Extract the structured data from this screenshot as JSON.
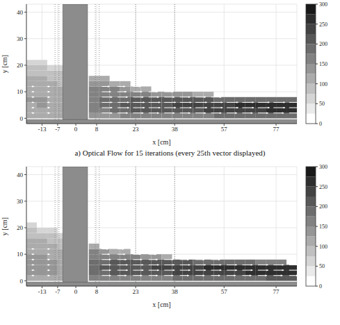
{
  "chart_data": [
    {
      "type": "heatmap",
      "title": "a) Optical Flow for 15 iterations (every 25th vector displayed)",
      "x_label": "x [cm]",
      "y_label": "y [cm]",
      "xlim": [
        -19,
        85
      ],
      "ylim": [
        -2,
        43
      ],
      "xticks": [
        -13,
        -7,
        0,
        8,
        23,
        38,
        57,
        77
      ],
      "yticks": [
        0,
        10,
        20,
        30,
        40
      ],
      "grid": true,
      "x_bins": [
        -19,
        -15,
        -11,
        -7,
        -3,
        1,
        5,
        9,
        13,
        17,
        21,
        25,
        29,
        33,
        37,
        41,
        45,
        49,
        53,
        57,
        61,
        65,
        69,
        73,
        77,
        81,
        85
      ],
      "y_bins": [
        0,
        2,
        4,
        6,
        8,
        10,
        12,
        14,
        16,
        18,
        20,
        22
      ],
      "cells": [
        [
          110,
          110,
          110,
          100,
          null,
          null,
          130,
          140,
          140,
          150,
          150,
          160,
          160,
          160,
          170,
          170,
          170,
          170,
          180,
          180,
          180,
          180,
          190,
          190,
          190,
          190
        ],
        [
          120,
          120,
          115,
          110,
          null,
          null,
          160,
          170,
          180,
          190,
          200,
          200,
          210,
          210,
          220,
          220,
          220,
          230,
          230,
          230,
          240,
          240,
          240,
          250,
          250,
          250
        ],
        [
          120,
          125,
          120,
          110,
          null,
          null,
          170,
          180,
          190,
          200,
          210,
          210,
          220,
          220,
          230,
          230,
          230,
          240,
          240,
          240,
          250,
          250,
          250,
          250,
          260,
          260
        ],
        [
          125,
          125,
          120,
          110,
          null,
          null,
          170,
          180,
          190,
          190,
          200,
          200,
          200,
          210,
          210,
          210,
          200,
          200,
          180,
          190,
          190,
          190,
          180,
          180,
          190,
          180
        ],
        [
          120,
          120,
          115,
          105,
          null,
          null,
          160,
          170,
          170,
          170,
          170,
          160,
          130,
          130,
          130,
          140,
          120,
          120,
          null,
          null,
          null,
          null,
          null,
          null,
          null,
          null
        ],
        [
          115,
          115,
          110,
          100,
          null,
          null,
          150,
          150,
          150,
          140,
          120,
          110,
          null,
          null,
          null,
          null,
          null,
          null,
          null,
          null,
          null,
          null,
          null,
          null,
          null,
          null
        ],
        [
          110,
          110,
          105,
          95,
          null,
          null,
          130,
          130,
          110,
          100,
          null,
          null,
          null,
          null,
          null,
          null,
          null,
          null,
          null,
          null,
          null,
          null,
          null,
          null,
          null,
          null
        ],
        [
          100,
          100,
          95,
          90,
          null,
          null,
          100,
          100,
          null,
          null,
          null,
          null,
          null,
          null,
          null,
          null,
          null,
          null,
          null,
          null,
          null,
          null,
          null,
          null,
          null,
          null
        ],
        [
          90,
          90,
          85,
          80,
          null,
          null,
          null,
          null,
          null,
          null,
          null,
          null,
          null,
          null,
          null,
          null,
          null,
          null,
          null,
          null,
          null,
          null,
          null,
          null,
          null,
          null
        ],
        [
          80,
          75,
          70,
          65,
          null,
          null,
          null,
          null,
          null,
          null,
          null,
          null,
          null,
          null,
          null,
          null,
          null,
          null,
          null,
          null,
          null,
          null,
          null,
          null,
          null,
          null
        ],
        [
          60,
          55,
          null,
          null,
          null,
          null,
          null,
          null,
          null,
          null,
          null,
          null,
          null,
          null,
          null,
          null,
          null,
          null,
          null,
          null,
          null,
          null,
          null,
          null,
          null,
          null
        ]
      ],
      "colorbar": {
        "range": [
          0,
          300
        ],
        "ticks": [
          0,
          50,
          100,
          150,
          200,
          250,
          300
        ]
      },
      "vectors": {
        "x": [
          -17,
          -11,
          10,
          16,
          22,
          28,
          34,
          40,
          46,
          52,
          58,
          64,
          70,
          76,
          82
        ],
        "y": [
          2,
          4,
          6,
          8,
          10,
          12
        ],
        "u": [
          [
            1,
            1,
            4,
            4,
            4,
            4,
            4,
            4,
            4,
            4,
            4,
            4,
            4,
            4,
            4
          ],
          [
            1,
            1,
            4,
            4.5,
            4.5,
            4.5,
            4.5,
            4.5,
            4.5,
            4.5,
            4.5,
            4.5,
            4.5,
            4.5,
            4.5
          ],
          [
            1,
            1,
            4,
            4.5,
            4.5,
            4.5,
            4.5,
            4.5,
            4.5,
            4.5,
            4.5,
            4.5,
            4.5,
            4.5,
            4.5
          ],
          [
            1,
            1,
            4,
            4,
            4,
            4,
            4,
            4,
            4,
            4,
            null,
            null,
            null,
            null,
            null
          ],
          [
            1,
            1,
            3.5,
            3.5,
            3.5,
            3.5,
            3.5,
            null,
            null,
            null,
            null,
            null,
            null,
            null,
            null
          ],
          [
            1,
            1,
            3,
            3,
            3,
            null,
            null,
            null,
            null,
            null,
            null,
            null,
            null,
            null,
            null
          ]
        ]
      },
      "walls": [
        {
          "x": [
            -5,
            4.5
          ],
          "y": [
            -2,
            43
          ]
        },
        {
          "x": [
            -19,
            85
          ],
          "y": [
            -2,
            -0.5
          ]
        }
      ],
      "sections": [
        -8,
        -6.5,
        7.5,
        9,
        23,
        38
      ]
    },
    {
      "type": "heatmap",
      "x_label": "x [cm]",
      "y_label": "y [cm]",
      "xlim": [
        -19,
        85
      ],
      "ylim": [
        -2,
        43
      ],
      "xticks": [
        -13,
        -7,
        0,
        8,
        23,
        38,
        57,
        77
      ],
      "yticks": [
        0,
        10,
        20,
        30,
        40
      ],
      "grid": true,
      "x_bins": [
        -19,
        -15,
        -11,
        -7,
        -3,
        1,
        5,
        9,
        13,
        17,
        21,
        25,
        29,
        33,
        37,
        41,
        45,
        49,
        53,
        57,
        61,
        65,
        69,
        73,
        77,
        81,
        85
      ],
      "y_bins": [
        0,
        2,
        4,
        6,
        8,
        10,
        12,
        14,
        16,
        18,
        20,
        22
      ],
      "cells": [
        [
          120,
          120,
          115,
          110,
          null,
          null,
          150,
          150,
          160,
          160,
          160,
          170,
          170,
          170,
          180,
          180,
          180,
          180,
          190,
          190,
          190,
          190,
          190,
          200,
          200,
          200
        ],
        [
          130,
          130,
          125,
          120,
          null,
          null,
          180,
          190,
          200,
          200,
          210,
          210,
          220,
          220,
          230,
          230,
          230,
          240,
          240,
          240,
          240,
          250,
          250,
          250,
          260,
          260
        ],
        [
          135,
          135,
          130,
          120,
          null,
          null,
          190,
          200,
          210,
          210,
          220,
          220,
          230,
          230,
          240,
          240,
          240,
          250,
          250,
          250,
          260,
          260,
          260,
          260,
          270,
          270
        ],
        [
          130,
          130,
          125,
          115,
          null,
          null,
          180,
          190,
          200,
          200,
          200,
          200,
          210,
          210,
          200,
          200,
          190,
          190,
          180,
          180,
          180,
          180,
          170,
          170,
          170,
          null
        ],
        [
          125,
          125,
          120,
          110,
          null,
          null,
          170,
          170,
          170,
          160,
          150,
          140,
          130,
          120,
          null,
          null,
          null,
          null,
          null,
          null,
          null,
          null,
          null,
          null,
          null,
          null
        ],
        [
          120,
          120,
          115,
          105,
          null,
          null,
          150,
          130,
          120,
          110,
          null,
          null,
          null,
          null,
          null,
          null,
          null,
          null,
          null,
          null,
          null,
          null,
          null,
          null,
          null,
          null
        ],
        [
          110,
          110,
          105,
          95,
          null,
          null,
          110,
          null,
          null,
          null,
          null,
          null,
          null,
          null,
          null,
          null,
          null,
          null,
          null,
          null,
          null,
          null,
          null,
          null,
          null,
          null
        ],
        [
          100,
          100,
          95,
          90,
          null,
          null,
          null,
          null,
          null,
          null,
          null,
          null,
          null,
          null,
          null,
          null,
          null,
          null,
          null,
          null,
          null,
          null,
          null,
          null,
          null,
          null
        ],
        [
          90,
          85,
          80,
          70,
          null,
          null,
          null,
          null,
          null,
          null,
          null,
          null,
          null,
          null,
          null,
          null,
          null,
          null,
          null,
          null,
          null,
          null,
          null,
          null,
          null,
          null
        ],
        [
          75,
          70,
          60,
          null,
          null,
          null,
          null,
          null,
          null,
          null,
          null,
          null,
          null,
          null,
          null,
          null,
          null,
          null,
          null,
          null,
          null,
          null,
          null,
          null,
          null,
          null
        ],
        [
          55,
          null,
          null,
          null,
          null,
          null,
          null,
          null,
          null,
          null,
          null,
          null,
          null,
          null,
          null,
          null,
          null,
          null,
          null,
          null,
          null,
          null,
          null,
          null,
          null,
          null
        ]
      ],
      "colorbar": {
        "range": [
          0,
          300
        ],
        "ticks": [
          0,
          50,
          100,
          150,
          200,
          250,
          300
        ]
      },
      "vectors": {
        "x": [
          -17,
          -11,
          10,
          16,
          22,
          28,
          34,
          40,
          46,
          52,
          58,
          64,
          70,
          76,
          82
        ],
        "y": [
          2,
          4,
          6,
          8,
          10,
          12
        ],
        "u": [
          [
            1,
            1,
            3.5,
            3.5,
            3.5,
            3.5,
            3.5,
            3.5,
            3.5,
            3.5,
            3.5,
            3.5,
            3.5,
            3.5,
            3.5
          ],
          [
            1,
            1,
            3.5,
            4,
            4,
            4,
            4,
            4,
            4,
            4,
            4,
            4,
            4,
            4,
            4
          ],
          [
            1,
            1,
            3.5,
            4,
            4,
            4,
            4,
            4,
            4,
            4,
            4,
            4,
            4,
            4,
            4
          ],
          [
            1,
            1,
            3.5,
            3.5,
            3.5,
            3.5,
            3.5,
            3.5,
            3.5,
            3.5,
            null,
            null,
            null,
            null,
            null
          ],
          [
            1,
            1,
            3,
            3,
            3,
            3,
            null,
            null,
            null,
            null,
            null,
            null,
            null,
            null,
            null
          ],
          [
            1,
            1,
            2.5,
            2.5,
            null,
            null,
            null,
            null,
            null,
            null,
            null,
            null,
            null,
            null,
            null
          ]
        ]
      },
      "walls": [
        {
          "x": [
            -5,
            4.5
          ],
          "y": [
            -2,
            43
          ]
        },
        {
          "x": [
            -19,
            85
          ],
          "y": [
            -2,
            -0.5
          ]
        }
      ],
      "sections": [
        -8,
        -6.5,
        7.5,
        9,
        23,
        38
      ]
    }
  ]
}
